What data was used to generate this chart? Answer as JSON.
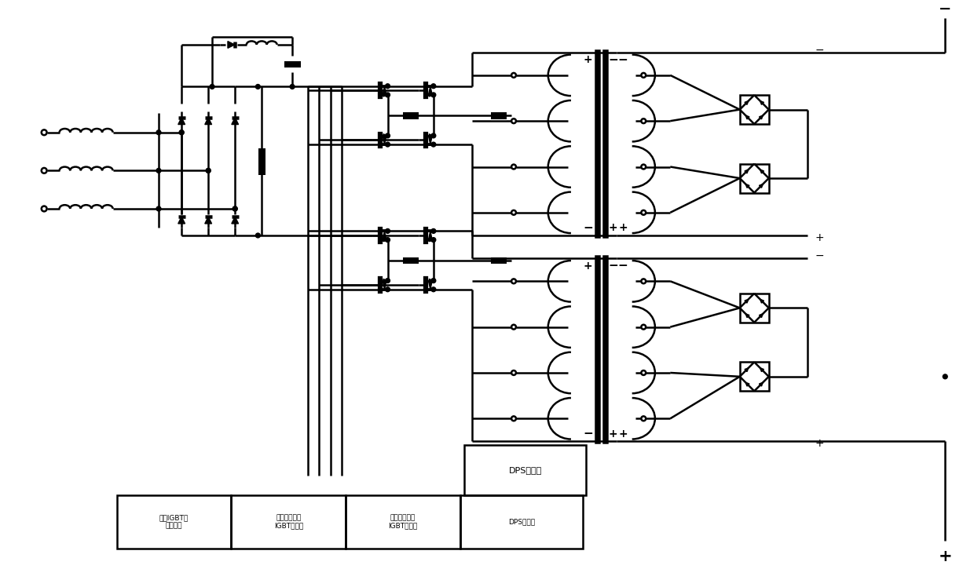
{
  "bg_color": "#ffffff",
  "lc": "#000000",
  "lw": 1.8,
  "fig_w": 12.4,
  "fig_h": 7.25,
  "label1": "单相IGBT调\n压驱动器",
  "label2": "桥式串联谐振\nIGBT驱动器",
  "label3": "桥式串联谐振\nIGBT驱动器",
  "label4": "DPS控制器",
  "minus": "−",
  "plus": "+"
}
